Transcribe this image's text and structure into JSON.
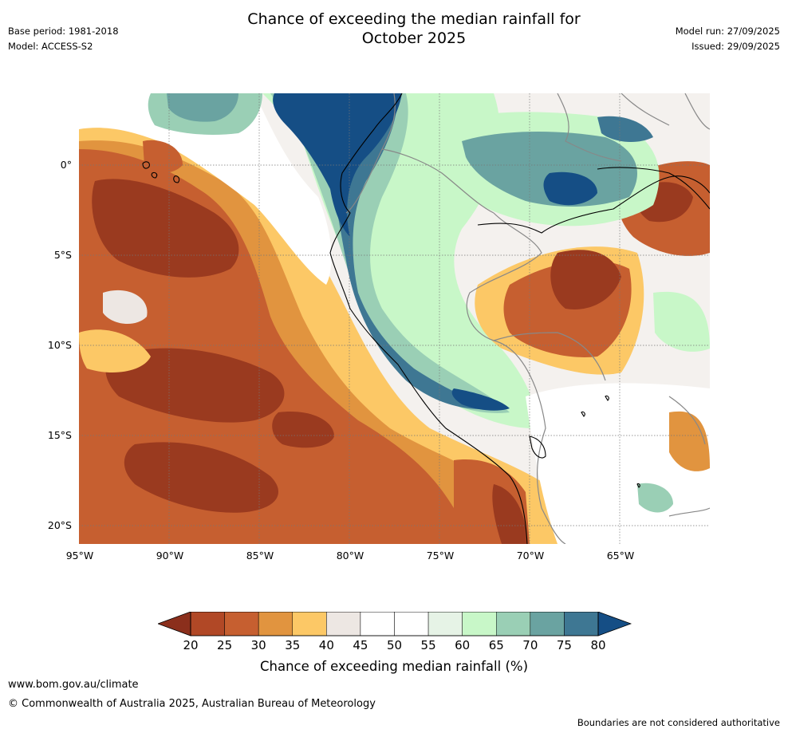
{
  "title_line1": "Chance of exceeding the median rainfall for",
  "title_line2": "October 2025",
  "meta_left": {
    "base_period": "Base period: 1981-2018",
    "model": "Model: ACCESS-S2"
  },
  "meta_right": {
    "model_run": "Model run: 27/09/2025",
    "issued": "Issued: 29/09/2025"
  },
  "axes": {
    "lat_labels": [
      "0°",
      "5°S",
      "10°S",
      "15°S",
      "20°S"
    ],
    "lon_labels": [
      "95°W",
      "90°W",
      "85°W",
      "80°W",
      "75°W",
      "70°W",
      "65°W"
    ],
    "lat_values": [
      0,
      -5,
      -10,
      -15,
      -20
    ],
    "lon_values": [
      -95,
      -90,
      -85,
      -80,
      -75,
      -70,
      -65
    ],
    "lon_range": [
      -95,
      -60
    ],
    "lat_range": [
      -21,
      4
    ]
  },
  "colorbar": {
    "title": "Chance of exceeding median rainfall (%)",
    "ticks": [
      "20",
      "25",
      "30",
      "35",
      "40",
      "45",
      "50",
      "55",
      "60",
      "65",
      "70",
      "75",
      "80"
    ],
    "colors": [
      "#9a3a1f",
      "#b14826",
      "#c65f30",
      "#e1943f",
      "#fcc866",
      "#ede7e3",
      "#ffffff",
      "#ffffff",
      "#e6f3e6",
      "#c8f7c8",
      "#9acfb5",
      "#6aa3a1",
      "#3e7793",
      "#154e85"
    ],
    "under_color": "#8b2f1c",
    "over_color": "#154e85"
  },
  "footer": {
    "website": "www.bom.gov.au/climate",
    "copyright": "© Commonwealth of Australia 2025, Australian Bureau of Meteorology",
    "disclaimer": "Boundaries are not considered authoritative"
  }
}
